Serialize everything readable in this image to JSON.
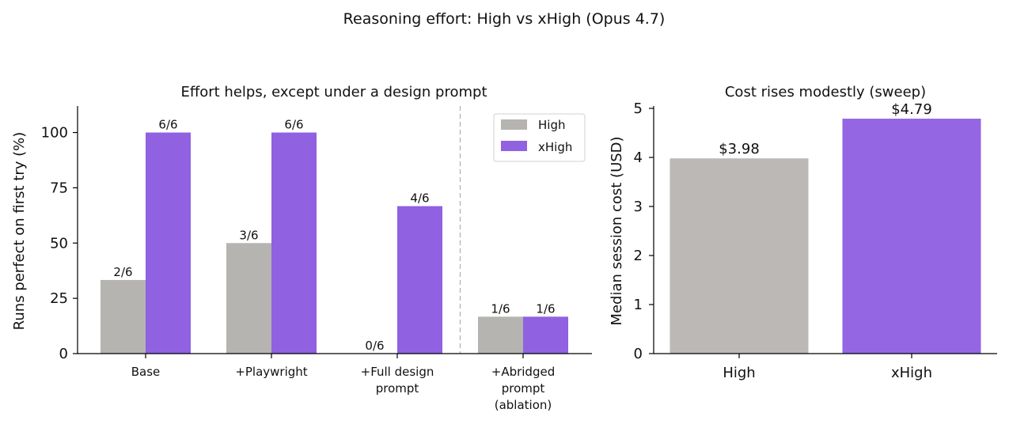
{
  "figure": {
    "title": "Reasoning effort: High vs xHigh (Opus 4.7)"
  },
  "chart_data": [
    {
      "type": "bar",
      "title": "Effort helps, except under a design prompt",
      "xlabel": "",
      "ylabel": "Runs perfect on first try (%)",
      "ylim": [
        0,
        112
      ],
      "yticks": [
        0,
        25,
        50,
        75,
        100
      ],
      "grid": false,
      "legend": "top-right",
      "divider_after_index": 2,
      "categories": [
        [
          "Base"
        ],
        [
          "+Playwright"
        ],
        [
          "+Full design",
          "prompt"
        ],
        [
          "+Abridged",
          "prompt",
          "(ablation)"
        ]
      ],
      "series": [
        {
          "name": "High",
          "color": "#b5b4b0",
          "values": [
            33.3,
            50,
            0,
            16.7
          ],
          "labels": [
            "2/6",
            "3/6",
            "0/6",
            "1/6"
          ]
        },
        {
          "name": "xHigh",
          "color": "#9061e0",
          "values": [
            100,
            100,
            66.7,
            16.7
          ],
          "labels": [
            "6/6",
            "6/6",
            "4/6",
            "1/6"
          ]
        }
      ]
    },
    {
      "type": "bar",
      "title": "Cost rises modestly (sweep)",
      "xlabel": "",
      "ylabel": "Median session cost (USD)",
      "ylim": [
        0,
        5
      ],
      "yticks": [
        0,
        1,
        2,
        3,
        4,
        5
      ],
      "grid": false,
      "categories": [
        "High",
        "xHigh"
      ],
      "values": [
        3.98,
        4.79
      ],
      "labels": [
        "$3.98",
        "$4.79"
      ],
      "colors": [
        "#bbb8b5",
        "#9566e3"
      ]
    }
  ]
}
